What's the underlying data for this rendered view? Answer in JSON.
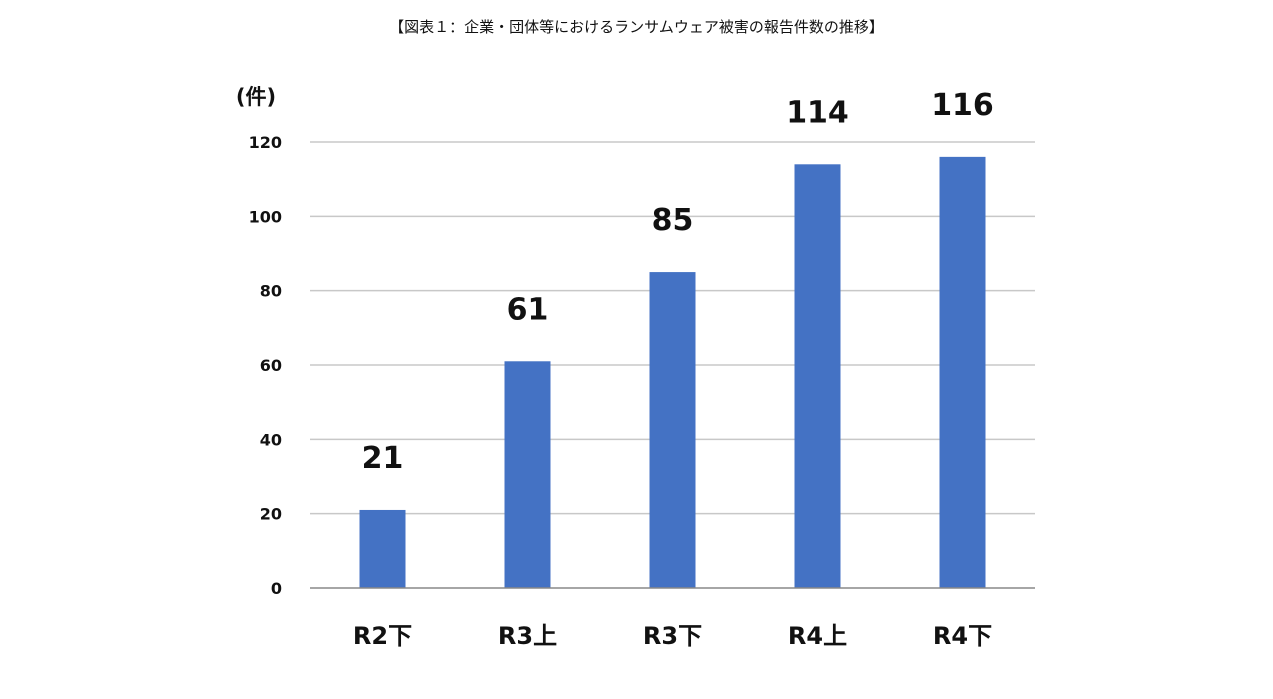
{
  "chart_data": {
    "type": "bar",
    "title": "【図表１：企業・団体等におけるランサムウェア被害の報告件数の推移】",
    "ylabel": "(件)",
    "categories": [
      "R2下",
      "R3上",
      "R3下",
      "R4上",
      "R4下"
    ],
    "values": [
      21,
      61,
      85,
      114,
      116
    ],
    "ylim": [
      0,
      120
    ],
    "yticks": [
      0,
      20,
      40,
      60,
      80,
      100,
      120
    ],
    "grid": true,
    "legend": "none",
    "bar_color": "#4472C4",
    "grid_color": "#C8C8C8",
    "axis_color": "#888888"
  }
}
